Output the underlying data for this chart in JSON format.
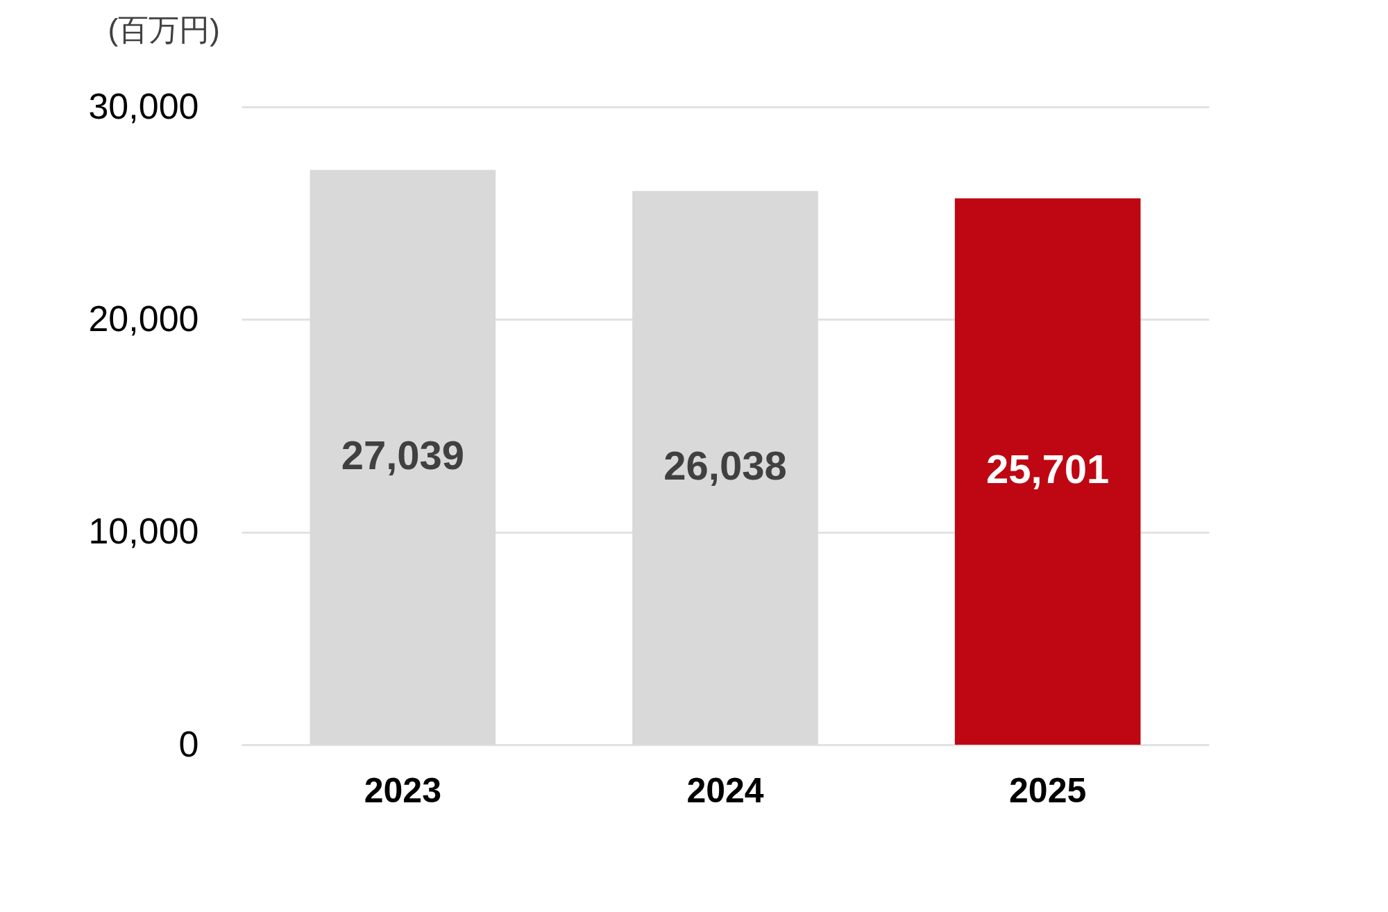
{
  "chart_data": {
    "type": "bar",
    "ylabel": "(百万円)",
    "categories": [
      "2023",
      "2024",
      "2025"
    ],
    "values": [
      27039,
      26038,
      25701
    ],
    "value_labels": [
      "27,039",
      "26,038",
      "25,701"
    ],
    "colors": [
      "#d9d9d9",
      "#d9d9d9",
      "#be0712"
    ],
    "ylim": [
      0,
      30000
    ],
    "yticks": [
      0,
      {
        "value": 10000,
        "label": "10,000"
      },
      {
        "value": 20000,
        "label": "20,000"
      },
      {
        "value": 30000,
        "label": "30,000"
      }
    ],
    "grid": "y"
  }
}
